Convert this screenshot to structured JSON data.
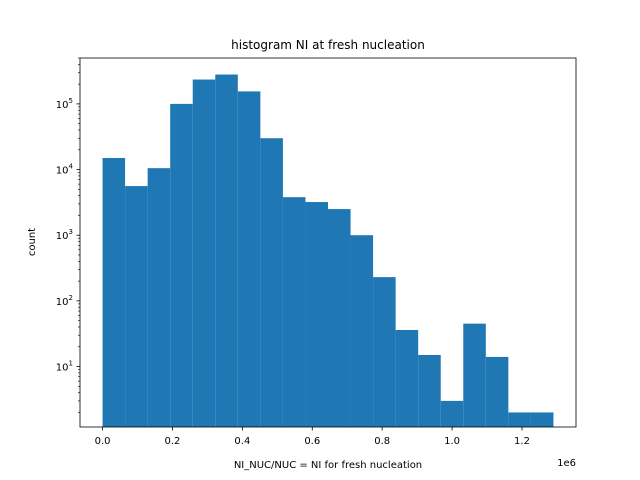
{
  "chart_data": {
    "type": "histogram",
    "title": "histogram NI at fresh nucleation",
    "xlabel": "NI_NUC/NUC = NI for fresh nucleation",
    "ylabel": "count",
    "x_offset_label": "1e6",
    "x_scale_factor": 1000000,
    "xlim": [
      -0.0645,
      1.3545
    ],
    "y_scale": "log",
    "ylim": [
      1.2,
      500000
    ],
    "x_ticks": [
      0.0,
      0.2,
      0.4,
      0.6,
      0.8,
      1.0,
      1.2
    ],
    "x_tick_labels": [
      "0.0",
      "0.2",
      "0.4",
      "0.6",
      "0.8",
      "1.0",
      "1.2"
    ],
    "y_ticks": [
      10,
      100,
      1000,
      10000,
      100000
    ],
    "y_tick_labels": [
      "10^1",
      "10^2",
      "10^3",
      "10^4",
      "10^5"
    ],
    "bin_edges": [
      0.0,
      0.0645,
      0.129,
      0.1935,
      0.258,
      0.3225,
      0.387,
      0.4515,
      0.516,
      0.5805,
      0.645,
      0.7095,
      0.774,
      0.8385,
      0.903,
      0.9675,
      1.032,
      1.0965,
      1.161,
      1.2255,
      1.29
    ],
    "counts": [
      15000,
      5600,
      10500,
      100000,
      235000,
      280000,
      155000,
      30000,
      3800,
      3200,
      2500,
      1000,
      230,
      36,
      15,
      3,
      45,
      14,
      2,
      2
    ],
    "color": "#1f77b4"
  }
}
